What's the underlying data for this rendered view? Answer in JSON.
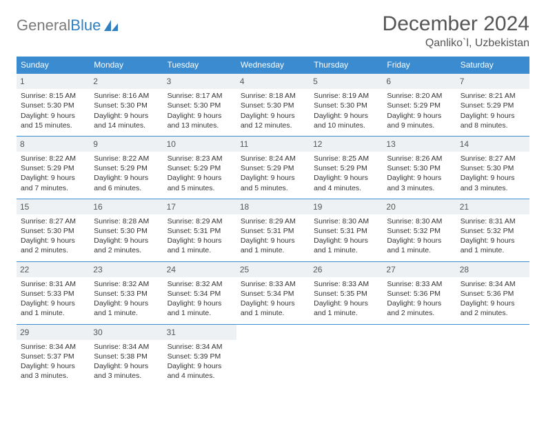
{
  "brand": {
    "part1": "General",
    "part2": "Blue"
  },
  "title": "December 2024",
  "location": "Qanliko`l, Uzbekistan",
  "colors": {
    "header_bg": "#3a8bcf",
    "header_text": "#ffffff",
    "daynum_bg": "#eef1f3",
    "border": "#3a8bcf",
    "brand_gray": "#7a7a7a",
    "brand_blue": "#2f7fc1"
  },
  "day_names": [
    "Sunday",
    "Monday",
    "Tuesday",
    "Wednesday",
    "Thursday",
    "Friday",
    "Saturday"
  ],
  "weeks": [
    [
      {
        "n": "1",
        "sr": "8:15 AM",
        "ss": "5:30 PM",
        "dl": "9 hours and 15 minutes."
      },
      {
        "n": "2",
        "sr": "8:16 AM",
        "ss": "5:30 PM",
        "dl": "9 hours and 14 minutes."
      },
      {
        "n": "3",
        "sr": "8:17 AM",
        "ss": "5:30 PM",
        "dl": "9 hours and 13 minutes."
      },
      {
        "n": "4",
        "sr": "8:18 AM",
        "ss": "5:30 PM",
        "dl": "9 hours and 12 minutes."
      },
      {
        "n": "5",
        "sr": "8:19 AM",
        "ss": "5:30 PM",
        "dl": "9 hours and 10 minutes."
      },
      {
        "n": "6",
        "sr": "8:20 AM",
        "ss": "5:29 PM",
        "dl": "9 hours and 9 minutes."
      },
      {
        "n": "7",
        "sr": "8:21 AM",
        "ss": "5:29 PM",
        "dl": "9 hours and 8 minutes."
      }
    ],
    [
      {
        "n": "8",
        "sr": "8:22 AM",
        "ss": "5:29 PM",
        "dl": "9 hours and 7 minutes."
      },
      {
        "n": "9",
        "sr": "8:22 AM",
        "ss": "5:29 PM",
        "dl": "9 hours and 6 minutes."
      },
      {
        "n": "10",
        "sr": "8:23 AM",
        "ss": "5:29 PM",
        "dl": "9 hours and 5 minutes."
      },
      {
        "n": "11",
        "sr": "8:24 AM",
        "ss": "5:29 PM",
        "dl": "9 hours and 5 minutes."
      },
      {
        "n": "12",
        "sr": "8:25 AM",
        "ss": "5:29 PM",
        "dl": "9 hours and 4 minutes."
      },
      {
        "n": "13",
        "sr": "8:26 AM",
        "ss": "5:30 PM",
        "dl": "9 hours and 3 minutes."
      },
      {
        "n": "14",
        "sr": "8:27 AM",
        "ss": "5:30 PM",
        "dl": "9 hours and 3 minutes."
      }
    ],
    [
      {
        "n": "15",
        "sr": "8:27 AM",
        "ss": "5:30 PM",
        "dl": "9 hours and 2 minutes."
      },
      {
        "n": "16",
        "sr": "8:28 AM",
        "ss": "5:30 PM",
        "dl": "9 hours and 2 minutes."
      },
      {
        "n": "17",
        "sr": "8:29 AM",
        "ss": "5:31 PM",
        "dl": "9 hours and 1 minute."
      },
      {
        "n": "18",
        "sr": "8:29 AM",
        "ss": "5:31 PM",
        "dl": "9 hours and 1 minute."
      },
      {
        "n": "19",
        "sr": "8:30 AM",
        "ss": "5:31 PM",
        "dl": "9 hours and 1 minute."
      },
      {
        "n": "20",
        "sr": "8:30 AM",
        "ss": "5:32 PM",
        "dl": "9 hours and 1 minute."
      },
      {
        "n": "21",
        "sr": "8:31 AM",
        "ss": "5:32 PM",
        "dl": "9 hours and 1 minute."
      }
    ],
    [
      {
        "n": "22",
        "sr": "8:31 AM",
        "ss": "5:33 PM",
        "dl": "9 hours and 1 minute."
      },
      {
        "n": "23",
        "sr": "8:32 AM",
        "ss": "5:33 PM",
        "dl": "9 hours and 1 minute."
      },
      {
        "n": "24",
        "sr": "8:32 AM",
        "ss": "5:34 PM",
        "dl": "9 hours and 1 minute."
      },
      {
        "n": "25",
        "sr": "8:33 AM",
        "ss": "5:34 PM",
        "dl": "9 hours and 1 minute."
      },
      {
        "n": "26",
        "sr": "8:33 AM",
        "ss": "5:35 PM",
        "dl": "9 hours and 1 minute."
      },
      {
        "n": "27",
        "sr": "8:33 AM",
        "ss": "5:36 PM",
        "dl": "9 hours and 2 minutes."
      },
      {
        "n": "28",
        "sr": "8:34 AM",
        "ss": "5:36 PM",
        "dl": "9 hours and 2 minutes."
      }
    ],
    [
      {
        "n": "29",
        "sr": "8:34 AM",
        "ss": "5:37 PM",
        "dl": "9 hours and 3 minutes."
      },
      {
        "n": "30",
        "sr": "8:34 AM",
        "ss": "5:38 PM",
        "dl": "9 hours and 3 minutes."
      },
      {
        "n": "31",
        "sr": "8:34 AM",
        "ss": "5:39 PM",
        "dl": "9 hours and 4 minutes."
      },
      null,
      null,
      null,
      null
    ]
  ],
  "labels": {
    "sunrise": "Sunrise:",
    "sunset": "Sunset:",
    "daylight": "Daylight:"
  }
}
